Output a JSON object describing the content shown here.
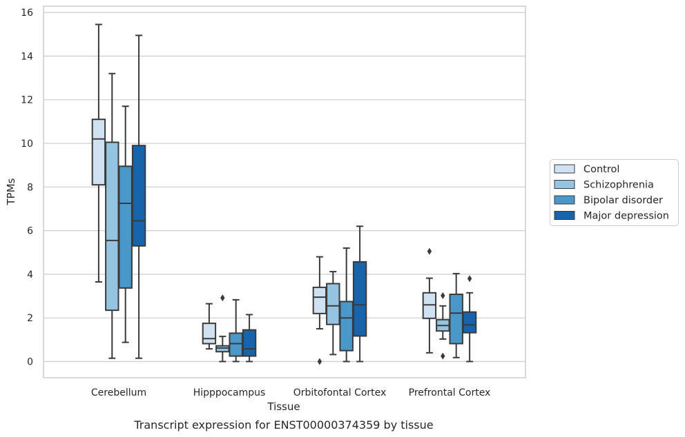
{
  "chart_data": {
    "type": "box",
    "caption": "Transcript expression for ENST00000374359 by tissue",
    "xlabel": "Tissue",
    "ylabel": "TPMs",
    "ylim": [
      -0.75,
      16.25
    ],
    "yticks": [
      0,
      2,
      4,
      6,
      8,
      10,
      12,
      14,
      16
    ],
    "grid": "horizontal",
    "legend_position": "right",
    "categories": [
      "Cerebellum",
      "Hipppocampus",
      "Orbitofontal Cortex",
      "Prefrontal Cortex"
    ],
    "series": [
      {
        "name": "Control",
        "color": "#d0e1f2",
        "boxes": [
          {
            "whislo": 3.65,
            "q1": 8.1,
            "med": 10.2,
            "q3": 11.1,
            "whishi": 15.45,
            "fliers": []
          },
          {
            "whislo": 0.58,
            "q1": 0.82,
            "med": 1.05,
            "q3": 1.75,
            "whishi": 2.65,
            "fliers": []
          },
          {
            "whislo": 1.5,
            "q1": 2.2,
            "med": 2.95,
            "q3": 3.4,
            "whishi": 4.8,
            "fliers": [
              0.0
            ]
          },
          {
            "whislo": 0.4,
            "q1": 1.98,
            "med": 2.6,
            "q3": 3.15,
            "whishi": 3.82,
            "fliers": [
              5.05
            ]
          }
        ]
      },
      {
        "name": "Schizophrenia",
        "color": "#94c4df",
        "boxes": [
          {
            "whislo": 0.15,
            "q1": 2.35,
            "med": 5.55,
            "q3": 10.05,
            "whishi": 13.2,
            "fliers": []
          },
          {
            "whislo": 0.0,
            "q1": 0.45,
            "med": 0.62,
            "q3": 0.72,
            "whishi": 1.15,
            "fliers": [
              2.92
            ]
          },
          {
            "whislo": 0.32,
            "q1": 1.7,
            "med": 2.55,
            "q3": 3.57,
            "whishi": 4.12,
            "fliers": []
          },
          {
            "whislo": 1.03,
            "q1": 1.4,
            "med": 1.65,
            "q3": 1.92,
            "whishi": 2.55,
            "fliers": [
              3.02,
              0.25
            ]
          }
        ]
      },
      {
        "name": "Bipolar disorder",
        "color": "#4a98c9",
        "boxes": [
          {
            "whislo": 0.88,
            "q1": 3.37,
            "med": 7.25,
            "q3": 8.95,
            "whishi": 11.7,
            "fliers": []
          },
          {
            "whislo": 0.0,
            "q1": 0.25,
            "med": 0.82,
            "q3": 1.3,
            "whishi": 2.83,
            "fliers": []
          },
          {
            "whislo": 0.0,
            "q1": 0.5,
            "med": 2.0,
            "q3": 2.75,
            "whishi": 5.2,
            "fliers": []
          },
          {
            "whislo": 0.18,
            "q1": 0.82,
            "med": 2.22,
            "q3": 3.08,
            "whishi": 4.03,
            "fliers": []
          }
        ]
      },
      {
        "name": "Major depression",
        "color": "#1764ab",
        "boxes": [
          {
            "whislo": 0.15,
            "q1": 5.3,
            "med": 6.45,
            "q3": 9.9,
            "whishi": 14.95,
            "fliers": []
          },
          {
            "whislo": 0.0,
            "q1": 0.25,
            "med": 0.58,
            "q3": 1.45,
            "whishi": 2.15,
            "fliers": []
          },
          {
            "whislo": 0.0,
            "q1": 1.17,
            "med": 2.6,
            "q3": 4.57,
            "whishi": 6.2,
            "fliers": []
          },
          {
            "whislo": 0.0,
            "q1": 1.32,
            "med": 1.68,
            "q3": 2.27,
            "whishi": 3.15,
            "fliers": [
              3.8
            ]
          }
        ]
      }
    ]
  }
}
